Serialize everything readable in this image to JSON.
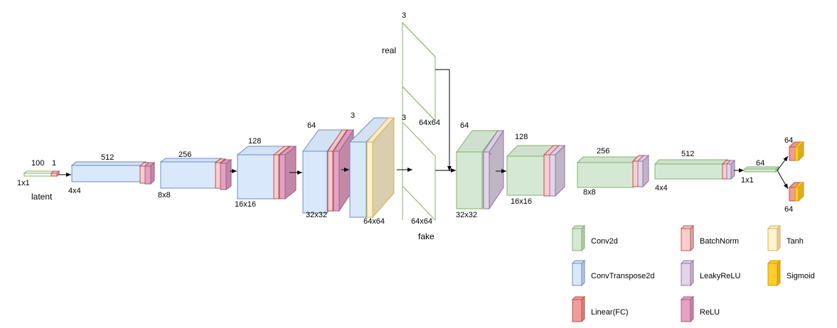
{
  "generator": {
    "latent": {
      "channels_a": "100",
      "channels_b": "1",
      "size": "1x1",
      "caption": "latent"
    },
    "stages": [
      {
        "channels": "512",
        "size": "4x4"
      },
      {
        "channels": "256",
        "size": "8x8"
      },
      {
        "channels": "128",
        "size": "16x16"
      },
      {
        "channels": "64",
        "size": "32x32"
      },
      {
        "channels": "3",
        "size": "64x64"
      }
    ]
  },
  "images": {
    "real": {
      "channels": "3",
      "size": "64x64",
      "caption": "real"
    },
    "fake": {
      "channels": "3",
      "size": "64x64",
      "caption": "fake"
    }
  },
  "discriminator": {
    "stages": [
      {
        "channels": "64",
        "size": "32x32"
      },
      {
        "channels": "128",
        "size": "16x16"
      },
      {
        "channels": "256",
        "size": "8x8"
      },
      {
        "channels": "512",
        "size": "4x4"
      }
    ],
    "fc": {
      "channels": "64",
      "size": "1x1"
    },
    "heads": [
      {
        "channels": "64"
      },
      {
        "channels": "64"
      }
    ]
  },
  "legend": [
    {
      "label": "Conv2d",
      "color": "#d5e8d4",
      "stroke": "#82b366"
    },
    {
      "label": "BatchNorm",
      "color": "#f8cecc",
      "stroke": "#b85450"
    },
    {
      "label": "Tanh",
      "color": "#fff2cc",
      "stroke": "#d6b656"
    },
    {
      "label": "ConvTranspose2d",
      "color": "#dae8fc",
      "stroke": "#6c8ebf"
    },
    {
      "label": "LeakyReLU",
      "color": "#e1d5e7",
      "stroke": "#9673a6"
    },
    {
      "label": "Sigmoid",
      "color": "#ffcd28",
      "stroke": "#d79b00"
    },
    {
      "label": "Linear(FC)",
      "color": "#f19c99",
      "stroke": "#b85450"
    },
    {
      "label": "ReLU",
      "color": "#e6a0c4",
      "stroke": "#996185"
    }
  ]
}
